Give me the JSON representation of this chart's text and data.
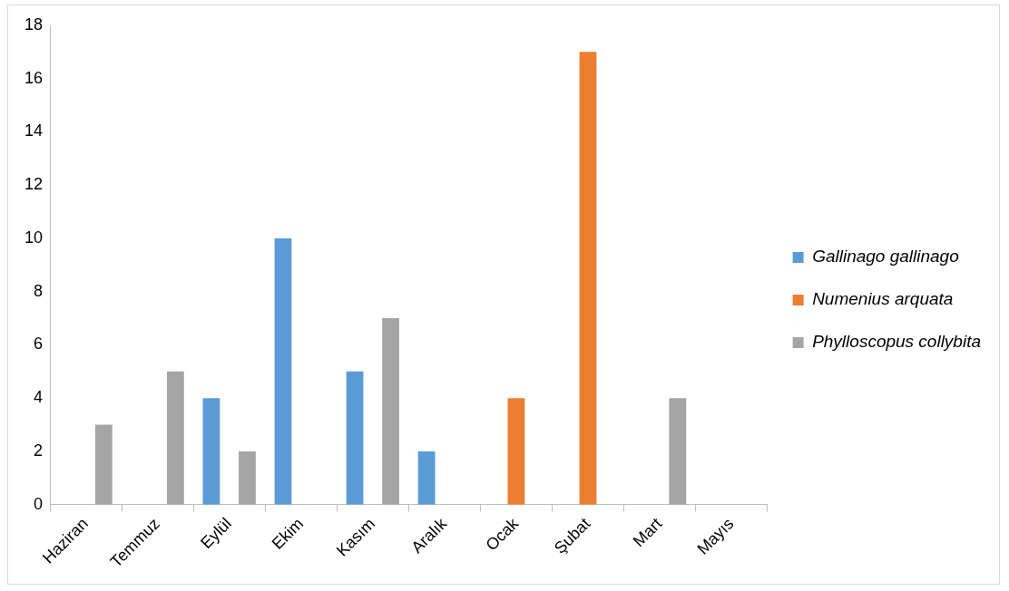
{
  "chart_data": {
    "type": "bar",
    "categories": [
      "Haziran",
      "Temmuz",
      "Eylül",
      "Ekim",
      "Kasım",
      "Aralık",
      "Ocak",
      "Şubat",
      "Mart",
      "Mayıs"
    ],
    "series": [
      {
        "name": "Gallinago gallinago",
        "color": "#5b9bd5",
        "values": [
          null,
          null,
          4,
          10,
          5,
          2,
          null,
          null,
          null,
          null
        ]
      },
      {
        "name": "Numenius arquata",
        "color": "#ed7d31",
        "values": [
          null,
          null,
          null,
          null,
          null,
          null,
          4,
          17,
          null,
          null
        ]
      },
      {
        "name": "Phylloscopus collybita",
        "color": "#a5a5a5",
        "values": [
          3,
          5,
          2,
          null,
          7,
          null,
          null,
          null,
          4,
          null
        ]
      }
    ],
    "ylim": [
      0,
      18
    ],
    "yticks": [
      0,
      2,
      4,
      6,
      8,
      10,
      12,
      14,
      16,
      18
    ],
    "grid": false,
    "legend": "right"
  }
}
